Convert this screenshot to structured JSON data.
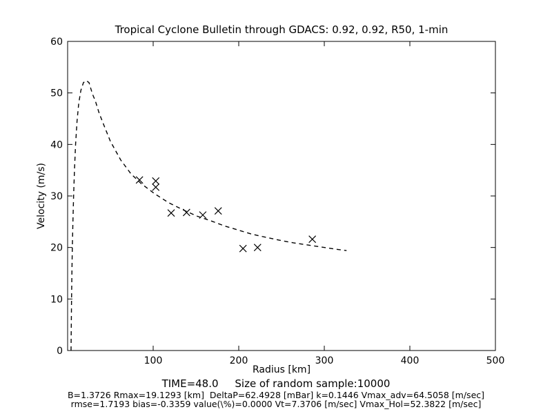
{
  "figure": {
    "title": "Tropical Cyclone Bulletin through GDACS: 0.92, 0.92, R50, 1-min",
    "xlabel": "Radius [km]",
    "ylabel": "Velocity (m/s)",
    "footer_line1": "TIME=48.0     Size of random sample:10000",
    "footer_line2": "B=1.3726 Rmax=19.1293 [km]  DeltaP=62.4928 [mBar] k=0.1446 Vmax_adv=64.5058 [m/sec]",
    "footer_line3": "rmse=1.7193 bias=-0.3359 value(\\%)=0.0000 Vt=7.3706 [m/sec] Vmax_Hol=52.3822 [m/sec]"
  },
  "chart_data": {
    "type": "line",
    "title": "Tropical Cyclone Bulletin through GDACS: 0.92, 0.92, R50, 1-min",
    "xlabel": "Radius [km]",
    "ylabel": "Velocity (m/s)",
    "xlim": [
      0,
      500
    ],
    "ylim": [
      0,
      60
    ],
    "x_ticks": [
      100,
      200,
      300,
      400,
      500
    ],
    "y_ticks": [
      0,
      10,
      20,
      30,
      40,
      50,
      60
    ],
    "grid": false,
    "legend": "none",
    "colors": {
      "foreground": "#000000",
      "background": "#ffffff"
    },
    "series": [
      {
        "name": "holland-model-profile",
        "style": "dashed-line",
        "x": [
          4,
          4.3,
          4.6,
          5,
          5.5,
          6.2,
          7,
          8,
          9.3,
          11,
          13,
          15.5,
          18.5,
          21.8,
          25,
          29,
          32.5,
          37,
          42,
          50,
          62,
          74,
          86,
          102,
          118,
          135,
          151,
          167,
          183,
          199,
          215,
          231,
          248,
          264,
          280,
          296,
          312,
          326
        ],
        "y": [
          0,
          5,
          10,
          15,
          20,
          25,
          30,
          35,
          40,
          44.5,
          48,
          50.5,
          52,
          52.4,
          52.0,
          49.8,
          48.4,
          46,
          43.9,
          40.6,
          37.0,
          34.3,
          32.4,
          30.4,
          28.7,
          27.3,
          26.1,
          25.2,
          24.2,
          23.4,
          22.6,
          22.0,
          21.4,
          20.9,
          20.5,
          20.1,
          19.7,
          19.4
        ]
      },
      {
        "name": "random-sample-points",
        "style": "x-marker",
        "x": [
          84,
          103,
          103,
          121,
          139,
          158,
          176,
          205,
          222,
          286
        ],
        "y": [
          33.1,
          32.9,
          31.7,
          26.7,
          26.8,
          26.3,
          27.1,
          19.8,
          20.0,
          21.6
        ]
      }
    ]
  }
}
